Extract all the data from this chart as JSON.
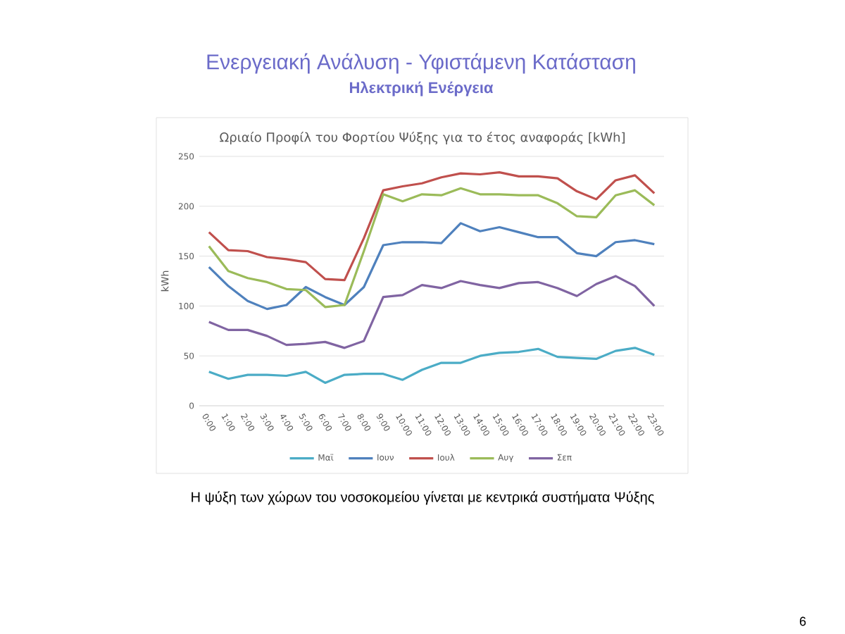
{
  "chart_data": {
    "type": "line",
    "title": "Ενεργειακή Ανάλυση - Υφιστάμενη Κατάσταση",
    "subtitle": "Ηλεκτρική Ενέργεια",
    "ylabel": "kWh",
    "annotations": [
      "Ωριαίο Προφίλ του Φορτίου Ψύξης για το έτος αναφοράς [kWh]",
      "Η ψύξη των χώρων του νοσοκομείου γίνεται με κεντρικά συστήματα Ψύξης",
      "6"
    ],
    "categories": [
      "0:00",
      "1:00",
      "2:00",
      "3:00",
      "4:00",
      "5:00",
      "6:00",
      "7:00",
      "8:00",
      "9:00",
      "10:00",
      "11:00",
      "12:00",
      "13:00",
      "14:00",
      "15:00",
      "16:00",
      "17:00",
      "18:00",
      "19:00",
      "20:00",
      "21:00",
      "22:00",
      "23:00"
    ],
    "series": [
      {
        "name": "Μαϊ",
        "color": "#4bacc6",
        "values": [
          34,
          27,
          31,
          31,
          30,
          34,
          23,
          31,
          32,
          32,
          26,
          36,
          43,
          43,
          50,
          53,
          54,
          57,
          49,
          48,
          47,
          55,
          58,
          51
        ]
      },
      {
        "name": "Ιουν",
        "color": "#4f81bd",
        "values": [
          139,
          120,
          105,
          97,
          101,
          119,
          109,
          101,
          119,
          161,
          164,
          164,
          163,
          183,
          175,
          179,
          174,
          169,
          169,
          153,
          150,
          164,
          166,
          162
        ]
      },
      {
        "name": "Ιουλ",
        "color": "#c0504d",
        "values": [
          174,
          156,
          155,
          149,
          147,
          144,
          127,
          126,
          168,
          216,
          220,
          223,
          229,
          233,
          232,
          234,
          230,
          230,
          228,
          215,
          207,
          226,
          231,
          213
        ]
      },
      {
        "name": "Αυγ",
        "color": "#9bbb59",
        "values": [
          160,
          135,
          128,
          124,
          117,
          116,
          99,
          101,
          155,
          212,
          205,
          212,
          211,
          218,
          212,
          212,
          211,
          211,
          203,
          190,
          189,
          211,
          216,
          201
        ]
      },
      {
        "name": "Σεπ",
        "color": "#8064a2",
        "values": [
          84,
          76,
          76,
          70,
          61,
          62,
          64,
          58,
          65,
          109,
          111,
          121,
          118,
          125,
          121,
          118,
          123,
          124,
          118,
          110,
          122,
          130,
          120,
          100
        ]
      }
    ],
    "ylim": [
      0,
      250
    ],
    "yticks": [
      0,
      50,
      100,
      150,
      200,
      250
    ],
    "grid": "y",
    "legend": "bottom"
  }
}
